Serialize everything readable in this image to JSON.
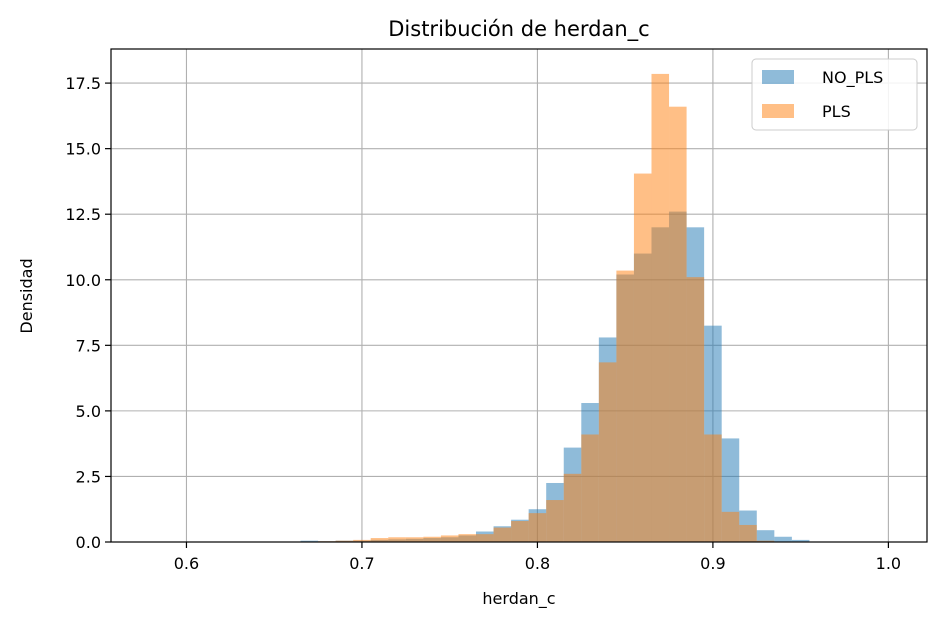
{
  "chart_data": {
    "type": "bar",
    "title": "Distribución de herdan_c",
    "xlabel": "herdan_c",
    "ylabel": "Densidad",
    "xlim": [
      0.557,
      1.022
    ],
    "ylim": [
      0,
      18.8
    ],
    "grid": true,
    "legend_position": "top-right",
    "bin_width": 0.01,
    "xticks": [
      {
        "value": 0.6,
        "label": "0.6"
      },
      {
        "value": 0.7,
        "label": "0.7"
      },
      {
        "value": 0.8,
        "label": "0.8"
      },
      {
        "value": 0.9,
        "label": "0.9"
      },
      {
        "value": 1.0,
        "label": "1.0"
      }
    ],
    "yticks": [
      {
        "value": 0,
        "label": "0.0"
      },
      {
        "value": 2.5,
        "label": "2.5"
      },
      {
        "value": 5,
        "label": "5.0"
      },
      {
        "value": 7.5,
        "label": "7.5"
      },
      {
        "value": 10,
        "label": "10.0"
      },
      {
        "value": 12.5,
        "label": "12.5"
      },
      {
        "value": 15,
        "label": "15.0"
      },
      {
        "value": 17.5,
        "label": "17.5"
      }
    ],
    "series": [
      {
        "name": "NO_PLS",
        "color": "#1f77b4",
        "opacity": 0.5,
        "bin_starts": [
          0.665,
          0.675,
          0.685,
          0.695,
          0.705,
          0.715,
          0.725,
          0.735,
          0.745,
          0.755,
          0.765,
          0.775,
          0.785,
          0.795,
          0.805,
          0.815,
          0.825,
          0.835,
          0.845,
          0.855,
          0.865,
          0.875,
          0.885,
          0.895,
          0.905,
          0.915,
          0.925,
          0.935,
          0.945
        ],
        "values": [
          0.05,
          0.03,
          0.05,
          0.05,
          0.08,
          0.1,
          0.12,
          0.15,
          0.18,
          0.25,
          0.4,
          0.6,
          0.85,
          1.25,
          2.25,
          3.6,
          5.3,
          7.8,
          10.2,
          11.0,
          12.0,
          12.6,
          12.0,
          8.25,
          3.95,
          1.2,
          0.45,
          0.2,
          0.08
        ]
      },
      {
        "name": "PLS",
        "color": "#ff7f0e",
        "opacity": 0.5,
        "bin_starts": [
          0.675,
          0.685,
          0.695,
          0.705,
          0.715,
          0.725,
          0.735,
          0.745,
          0.755,
          0.765,
          0.775,
          0.785,
          0.795,
          0.805,
          0.815,
          0.825,
          0.835,
          0.845,
          0.855,
          0.865,
          0.875,
          0.885,
          0.895,
          0.905,
          0.915,
          0.925
        ],
        "values": [
          0.03,
          0.05,
          0.08,
          0.15,
          0.18,
          0.18,
          0.2,
          0.25,
          0.3,
          0.3,
          0.55,
          0.8,
          1.1,
          1.6,
          2.6,
          4.1,
          6.85,
          10.35,
          14.05,
          17.85,
          16.6,
          10.1,
          4.1,
          1.15,
          0.65,
          0.05
        ]
      }
    ]
  }
}
